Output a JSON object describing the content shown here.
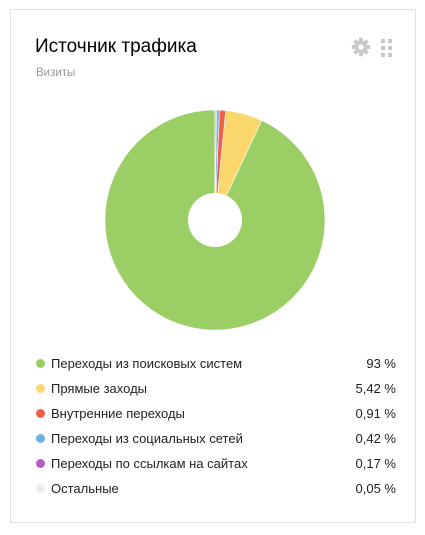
{
  "widget": {
    "title": "Источник трафика",
    "subtitle": "Визиты"
  },
  "icons": {
    "settings": "gear-icon",
    "drag": "drag-handle-icon"
  },
  "legend_items": [
    {
      "label": "Переходы из поисковых систем",
      "value": "93 %",
      "color": "#9bcf66"
    },
    {
      "label": "Прямые заходы",
      "value": "5,42 %",
      "color": "#fad76c"
    },
    {
      "label": "Внутренние переходы",
      "value": "0,91 %",
      "color": "#f05f46"
    },
    {
      "label": "Переходы из социальных сетей",
      "value": "0,42 %",
      "color": "#74afe6"
    },
    {
      "label": "Переходы по ссылкам на сайтах",
      "value": "0,17 %",
      "color": "#b15ec0"
    },
    {
      "label": "Остальные",
      "value": "0,05 %",
      "color": "#ececec"
    }
  ],
  "chart_data": {
    "type": "pie",
    "donut": true,
    "title": "Источник трафика",
    "subtitle": "Визиты",
    "categories": [
      "Переходы из поисковых систем",
      "Прямые заходы",
      "Внутренние переходы",
      "Переходы из социальных сетей",
      "Переходы по ссылкам на сайтах",
      "Остальные"
    ],
    "values": [
      93,
      5.42,
      0.91,
      0.42,
      0.17,
      0.05
    ],
    "colors": [
      "#9bcf66",
      "#fad76c",
      "#f05f46",
      "#74afe6",
      "#b15ec0",
      "#ececec"
    ],
    "legend": "bottom"
  }
}
